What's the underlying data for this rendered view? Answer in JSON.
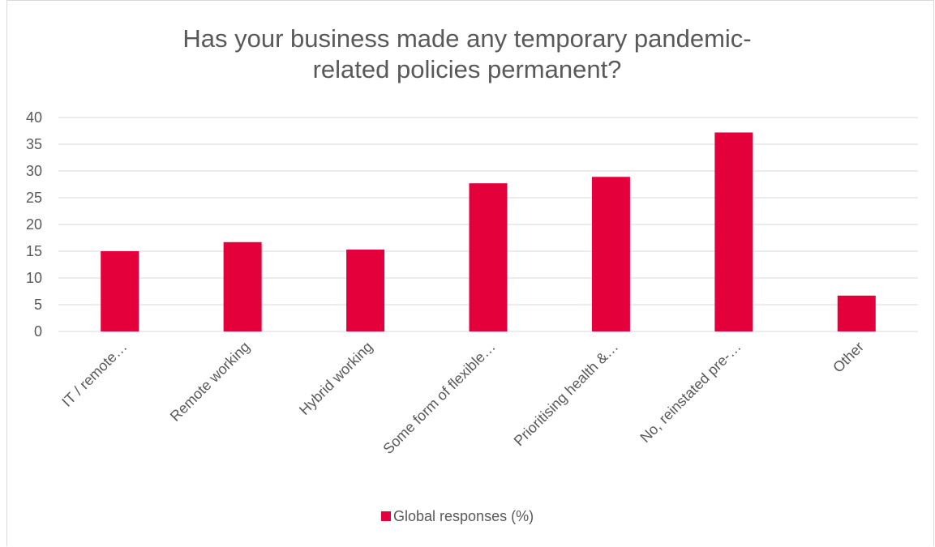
{
  "chart_data": {
    "type": "bar",
    "title_lines": [
      "Has your business made any temporary pandemic-",
      "related policies permanent?"
    ],
    "categories": [
      "IT / remote…",
      "Remote working",
      "Hybrid working",
      "Some form of flexible…",
      "Prioritising health &…",
      "No, reinstated pre-…",
      "Other"
    ],
    "series": [
      {
        "name": "Global responses (%)",
        "values": [
          15.0,
          16.7,
          15.3,
          27.7,
          28.9,
          37.2,
          6.7
        ],
        "color": "#e4003b"
      }
    ],
    "ylim": [
      0,
      40
    ],
    "yticks": [
      0,
      5,
      10,
      15,
      20,
      25,
      30,
      35,
      40
    ],
    "grid": true,
    "legend_position": "bottom"
  }
}
